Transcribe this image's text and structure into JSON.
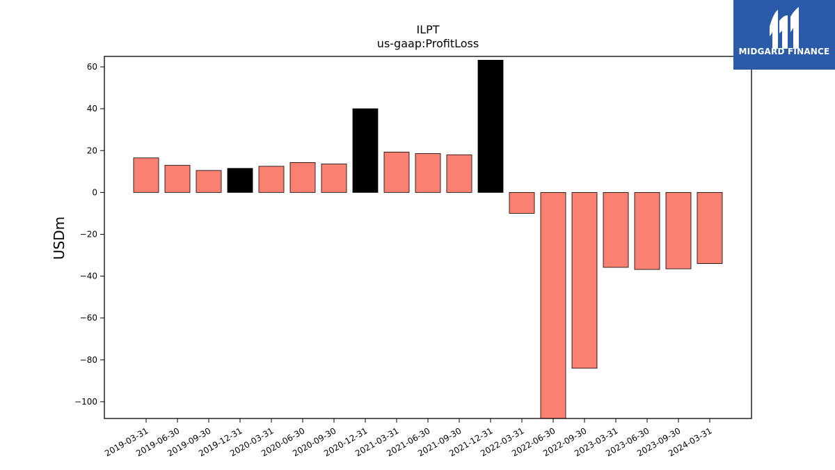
{
  "chart_data": {
    "type": "bar",
    "title": "ILPT",
    "subtitle": "us-gaap:ProfitLoss",
    "ylabel": "USDm",
    "ylim": [
      -108,
      65
    ],
    "yticks": [
      60,
      40,
      20,
      0,
      -20,
      -40,
      -60,
      -80,
      -100
    ],
    "yticklabels": [
      "60",
      "40",
      "20",
      "0",
      "−20",
      "−40",
      "−60",
      "−80",
      "−100"
    ],
    "categories": [
      "2019-03-31",
      "2019-06-30",
      "2019-09-30",
      "2019-12-31",
      "2020-03-31",
      "2020-06-30",
      "2020-09-30",
      "2020-12-31",
      "2021-03-31",
      "2021-06-30",
      "2021-09-30",
      "2021-12-31",
      "2022-03-31",
      "2022-06-30",
      "2022-09-30",
      "2023-03-31",
      "2023-06-30",
      "2023-09-30",
      "2024-03-31"
    ],
    "values": [
      16.5,
      13.0,
      10.5,
      11.5,
      12.5,
      14.3,
      13.6,
      40.0,
      19.3,
      18.6,
      18.0,
      63.2,
      -10.0,
      -110.0,
      -84.0,
      -35.8,
      -36.8,
      -36.5,
      -34.0
    ],
    "highlight": [
      false,
      false,
      false,
      true,
      false,
      false,
      false,
      true,
      false,
      false,
      false,
      true,
      false,
      false,
      false,
      false,
      false,
      false,
      false
    ],
    "colors": {
      "bar": "#fa8072",
      "highlight": "#000000",
      "edge": "#000000"
    }
  },
  "logo": {
    "name": "MIDGARD FINANCE",
    "background": "#2a5aa8"
  }
}
